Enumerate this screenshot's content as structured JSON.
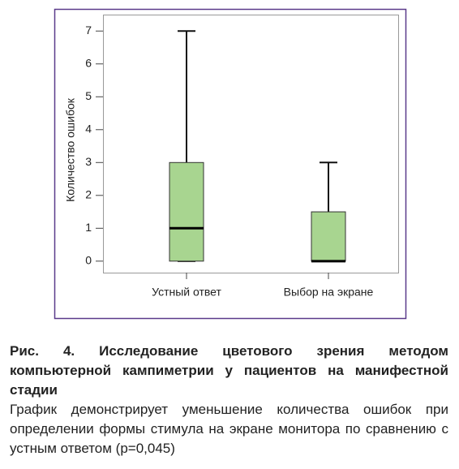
{
  "chart_data": {
    "type": "box",
    "y_label": "Количество ошибок",
    "categories": [
      "Устный ответ",
      "Выбор на экране"
    ],
    "boxes": [
      {
        "min": 0,
        "q1": 0,
        "median": 1,
        "q3": 3,
        "max": 7
      },
      {
        "min": 0,
        "q1": 0,
        "median": 0,
        "q3": 1.5,
        "max": 3
      }
    ],
    "color": "#a8d590",
    "ylim": [
      -0.35,
      7.5
    ],
    "yticks": [
      0,
      1,
      2,
      3,
      4,
      5,
      6,
      7
    ]
  },
  "caption": {
    "title": "Рис. 4. Исследование цветового зрения методом компьютерной кампиметрии у пациентов на манифестной стадии",
    "text": "График демонстрирует уменьшение количества ошибок при определении формы стимула на экране монитора по сравнению с устным ответом (p=0,045)"
  }
}
